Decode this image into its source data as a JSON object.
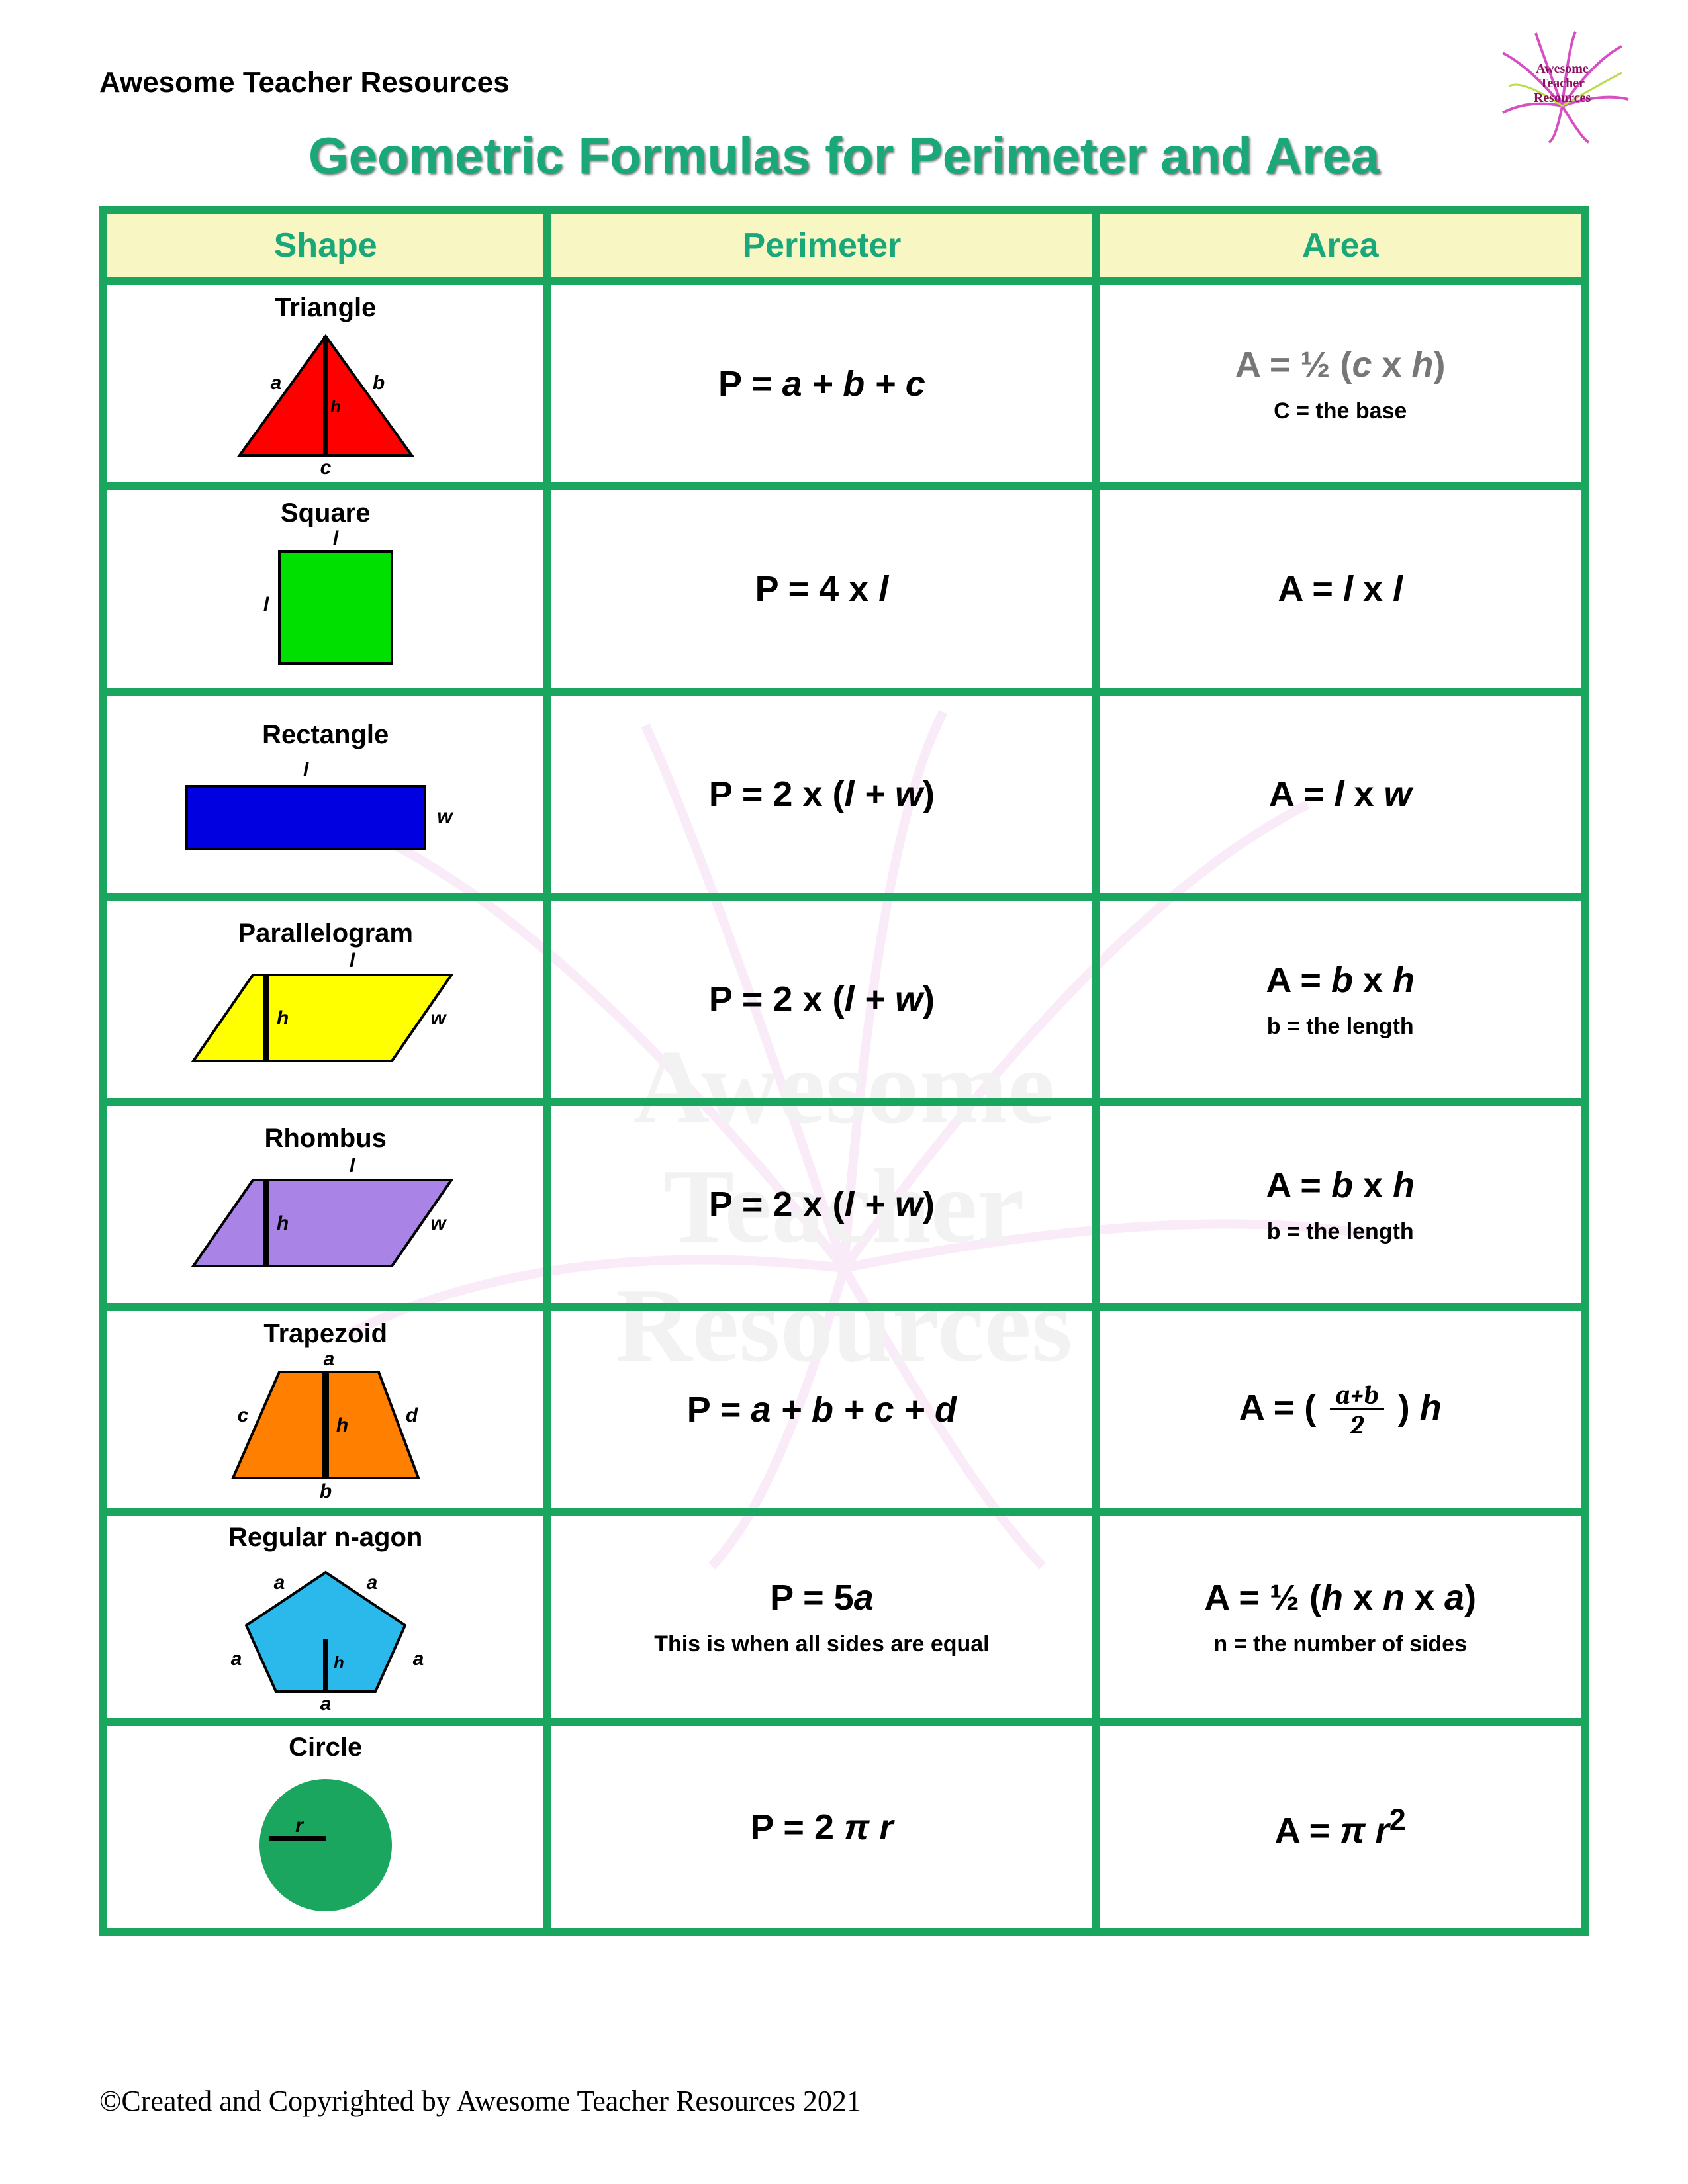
{
  "brand": "Awesome Teacher Resources",
  "logo_text": [
    "Awesome",
    "Teacher",
    "Resources"
  ],
  "title": "Geometric Formulas for Perimeter and Area",
  "watermark_lines": [
    "Awesome",
    "Teacher",
    "Resources"
  ],
  "table": {
    "border_color": "#1aa65e",
    "header_bg": "#f8f7c3",
    "header_color": "#1aa87a",
    "headers": {
      "shape": "Shape",
      "perimeter": "Perimeter",
      "area": "Area"
    },
    "title_color": "#1aa87a",
    "rows": [
      {
        "name": "Triangle",
        "shape_svg": {
          "type": "triangle",
          "fill": "#ff0000",
          "stroke": "#000",
          "labels": {
            "a": "a",
            "b": "b",
            "c": "c",
            "h": "h"
          }
        },
        "perimeter": "P = <i>a + b + c</i>",
        "area": "A =  ½ (<i>c</i> x <i>h</i>)",
        "area_gray": true,
        "area_sub": "C = the base"
      },
      {
        "name": "Square",
        "shape_svg": {
          "type": "square",
          "fill": "#00e000",
          "stroke": "#000",
          "labels": {
            "top": "l",
            "left": "l"
          }
        },
        "perimeter": "P = 4 x <i>l</i>",
        "area": "A = <i>l</i> x <i>l</i>"
      },
      {
        "name": "Rectangle",
        "shape_svg": {
          "type": "rect",
          "fill": "#0000e0",
          "stroke": "#000",
          "labels": {
            "top": "l",
            "right": "w"
          }
        },
        "perimeter": "P = 2 x (<i>l + w</i>)",
        "area": "A = <i>l</i> x <i>w</i>"
      },
      {
        "name": "Parallelogram",
        "shape_svg": {
          "type": "parallelogram",
          "fill": "#ffff00",
          "stroke": "#000",
          "labels": {
            "top": "l",
            "right": "w",
            "h": "h"
          }
        },
        "perimeter": "P = 2 x (<i>l + w</i>)",
        "area": "A = <i>b</i> x <i>h</i>",
        "area_sub": "b = the length"
      },
      {
        "name": "Rhombus",
        "shape_svg": {
          "type": "parallelogram",
          "fill": "#a983e6",
          "stroke": "#000",
          "labels": {
            "top": "l",
            "right": "w",
            "h": "h"
          }
        },
        "perimeter": "P = 2 x (<i>l + w</i>)",
        "area": "A = <i>b</i> x <i>h</i>",
        "area_sub": "b = the length"
      },
      {
        "name": "Trapezoid",
        "shape_svg": {
          "type": "trapezoid",
          "fill": "#ff7f00",
          "stroke": "#000",
          "labels": {
            "a": "a",
            "b": "b",
            "c": "c",
            "d": "d",
            "h": "h"
          }
        },
        "perimeter": "P = <i>a + b + c + d</i>",
        "area": "A = ( FRAC ) <i>h</i>",
        "frac": {
          "num": "a+b",
          "den": "2"
        }
      },
      {
        "name": "Regular n-agon",
        "shape_svg": {
          "type": "pentagon",
          "fill": "#2bb9ec",
          "stroke": "#000",
          "labels": {
            "a": "a",
            "h": "h"
          }
        },
        "perimeter": "P = 5<i>a</i>",
        "perimeter_sub": "This is when all sides are equal",
        "area": "A = ½ (<i>h</i> x <i>n</i> x <i>a</i>)",
        "area_sub": "n = the number of sides"
      },
      {
        "name": "Circle",
        "shape_svg": {
          "type": "circle",
          "fill": "#1aa65e",
          "stroke": "none",
          "labels": {
            "r": "r"
          }
        },
        "perimeter": "P = 2 <i>π r</i>",
        "area": "A = <i>π r</i><sup>2</sup>"
      }
    ]
  },
  "footer": "©Created and Copyrighted by Awesome Teacher Resources 2021"
}
